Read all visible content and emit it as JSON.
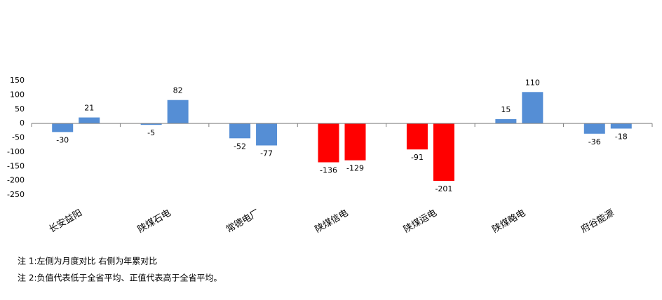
{
  "chart_data": {
    "type": "bar",
    "categories": [
      "长安益阳",
      "陕煤石电",
      "常德电厂",
      "陕煤信电",
      "陕煤运电",
      "陕煤略电",
      "府谷能源"
    ],
    "series": [
      {
        "values": [
          -30,
          -5,
          -52,
          -136,
          -91,
          15,
          -36
        ],
        "colors": [
          "#558ed5",
          "#558ed5",
          "#558ed5",
          "#ff0000",
          "#ff0000",
          "#558ed5",
          "#558ed5"
        ]
      },
      {
        "values": [
          21,
          82,
          -77,
          -129,
          -201,
          110,
          -18
        ],
        "colors": [
          "#558ed5",
          "#558ed5",
          "#558ed5",
          "#ff0000",
          "#ff0000",
          "#558ed5",
          "#558ed5"
        ]
      }
    ],
    "ylim": [
      -250,
      150
    ],
    "yticks": [
      150,
      100,
      50,
      0,
      -50,
      -100,
      -150,
      -200,
      -250
    ],
    "grid": false
  },
  "notes": [
    "注 1:左侧为月度对比  右侧为年累对比",
    "注 2:负值代表低于全省平均、正值代表高于全省平均。"
  ]
}
